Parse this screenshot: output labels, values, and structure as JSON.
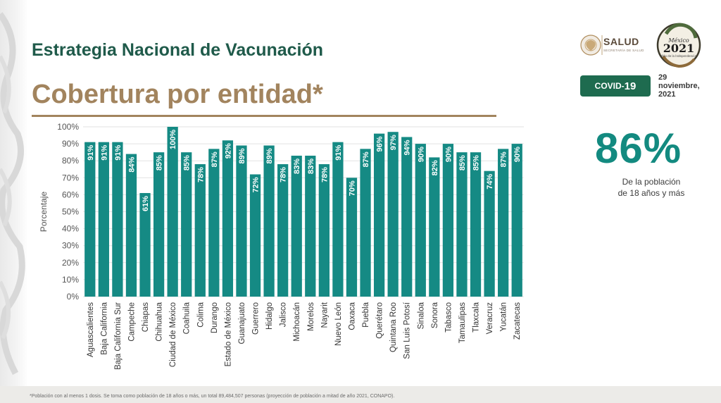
{
  "header": {
    "title": "Estrategia Nacional de Vacunación",
    "subtitle": "Cobertura por entidad*"
  },
  "logos": {
    "salud_name": "SALUD",
    "salud_tagline": "SECRETARÍA DE SALUD",
    "year_logo_country": "México",
    "year_logo_year": "2021",
    "year_logo_tagline": "Año de la Independencia"
  },
  "badge": {
    "prefix": "COVID-",
    "number": "19"
  },
  "date": {
    "line1": "29",
    "line2": "noviembre,",
    "line3": "2021"
  },
  "kpi": {
    "value": "86%",
    "caption_line1": "De la población",
    "caption_line2": "de 18 años y más"
  },
  "footnote": "*Población con al menos 1 dosis. Se toma como población de 18 años o más, un total 89,484,507 personas (proyección de población a mitad de año 2021, CONAPO).",
  "colors": {
    "bar": "#158a84",
    "bar_label": "#ffffff",
    "title_green": "#1f5a4a",
    "title_gold": "#a2845e",
    "badge_green": "#1e6b4f",
    "kpi_teal": "#138a80"
  },
  "chart_data": {
    "type": "bar",
    "title": "",
    "xlabel": "",
    "ylabel": "Porcentaje",
    "ylim": [
      0,
      100
    ],
    "yticks": [
      "0%",
      "10%",
      "20%",
      "30%",
      "40%",
      "50%",
      "60%",
      "70%",
      "80%",
      "90%",
      "100%"
    ],
    "grid": true,
    "categories": [
      "Aguascalientes",
      "Baja California",
      "Baja California Sur",
      "Campeche",
      "Chiapas",
      "Chihuahua",
      "Ciudad de México",
      "Coahuila",
      "Colima",
      "Durango",
      "Estado de México",
      "Guanajuato",
      "Guerrero",
      "Hidalgo",
      "Jalisco",
      "Michoacán",
      "Morelos",
      "Nayarit",
      "Nuevo León",
      "Oaxaca",
      "Puebla",
      "Querétaro",
      "Quintana Roo",
      "San Luis Potosí",
      "Sinaloa",
      "Sonora",
      "Tabasco",
      "Tamaulipas",
      "Tlaxcala",
      "Veracruz",
      "Yucatán",
      "Zacatecas"
    ],
    "values": [
      91,
      91,
      91,
      84,
      61,
      85,
      100,
      85,
      78,
      87,
      92,
      89,
      72,
      89,
      78,
      83,
      83,
      78,
      91,
      70,
      87,
      96,
      97,
      94,
      90,
      82,
      90,
      85,
      85,
      74,
      87,
      90
    ],
    "data_labels": [
      "91%",
      "91%",
      "91%",
      "84%",
      "61%",
      "85%",
      "100%",
      "85%",
      "78%",
      "87%",
      "92%",
      "89%",
      "72%",
      "89%",
      "78%",
      "83%",
      "83%",
      "78%",
      "91%",
      "70%",
      "87%",
      "96%",
      "97%",
      "94%",
      "90%",
      "82%",
      "90%",
      "85%",
      "85%",
      "74%",
      "87%",
      "90%"
    ]
  }
}
